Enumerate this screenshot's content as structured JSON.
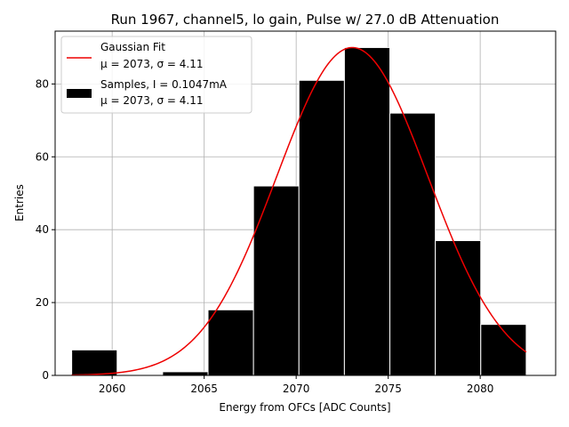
{
  "chart_data": {
    "type": "bar",
    "title": "Run 1967, channel5, lo gain, Pulse w/ 27.0 dB Attenuation",
    "xlabel": "Energy from OFCs [ADC Counts]",
    "ylabel": "Entries",
    "xlim": [
      2056.9,
      2084.1
    ],
    "ylim": [
      0,
      94.5
    ],
    "xticks": [
      2060,
      2065,
      2070,
      2075,
      2080
    ],
    "yticks": [
      0,
      20,
      40,
      60,
      80
    ],
    "grid": true,
    "bin_width": 2.47,
    "histogram": {
      "name": "Samples, I = 0.1047mA",
      "stats": "μ = 2073, σ = 4.11",
      "color": "#000000",
      "bin_edges": [
        2057.8,
        2060.27,
        2062.74,
        2065.21,
        2067.68,
        2070.15,
        2072.62,
        2075.09,
        2077.56,
        2080.03,
        2082.5
      ],
      "counts": [
        7,
        0,
        1,
        18,
        52,
        81,
        90,
        72,
        37,
        14
      ]
    },
    "fit": {
      "name": "Gaussian Fit",
      "stats": "μ = 2073, σ = 4.11",
      "color": "#ee0000",
      "mu": 2073.05,
      "sigma": 4.11,
      "amplitude": 90.0,
      "x_range": [
        2057.8,
        2082.5
      ]
    },
    "legend": {
      "position": "top-left",
      "entries": [
        {
          "label": "Gaussian Fit",
          "sublabel": "μ = 2073, σ = 4.11",
          "kind": "line"
        },
        {
          "label": "Samples, I = 0.1047mA",
          "sublabel": "μ = 2073, σ = 4.11",
          "kind": "patch"
        }
      ]
    }
  }
}
